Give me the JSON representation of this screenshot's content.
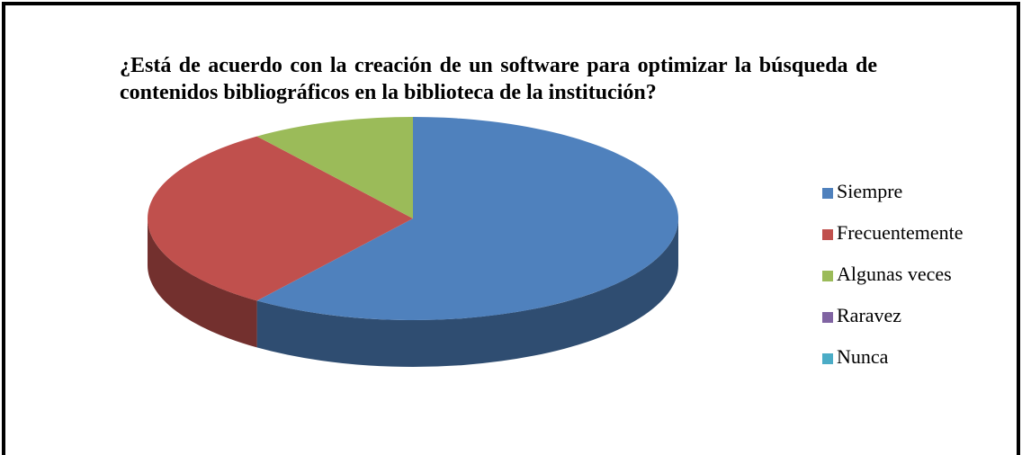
{
  "chart_data": {
    "type": "pie3d",
    "title": "¿Está de acuerdo con la creación de un software para optimizar la búsqueda de contenidos bibliográficos en la biblioteca de la institución?",
    "categories": [
      "Siempre",
      "Frecuentemente",
      "Algunas veces",
      "Raravez",
      "Nunca"
    ],
    "values": [
      60,
      30,
      10,
      0,
      0
    ],
    "colors": [
      "#4f81bd",
      "#c0504d",
      "#9bbb59",
      "#8064a2",
      "#4bacc6"
    ],
    "legend": "right"
  }
}
